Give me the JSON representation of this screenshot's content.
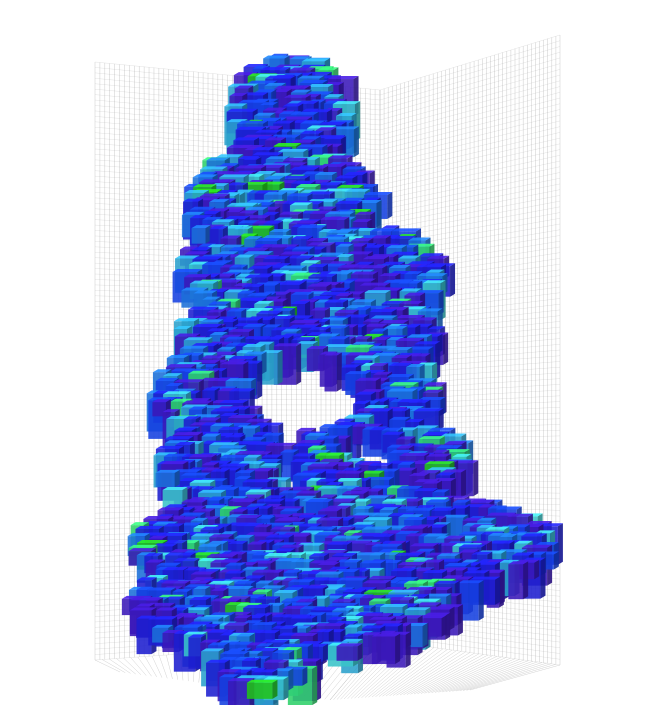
{
  "scene": {
    "kind": "3d-voxel-render",
    "colormap": [
      "#3a18b8",
      "#1d1ecf",
      "#1540e0",
      "#1b6fd8",
      "#2aa0cc",
      "#39c4c8",
      "#2fd06a",
      "#22c21a"
    ],
    "grid_color": "#9a9a9a",
    "background": "#ffffff",
    "grid_on": true
  }
}
